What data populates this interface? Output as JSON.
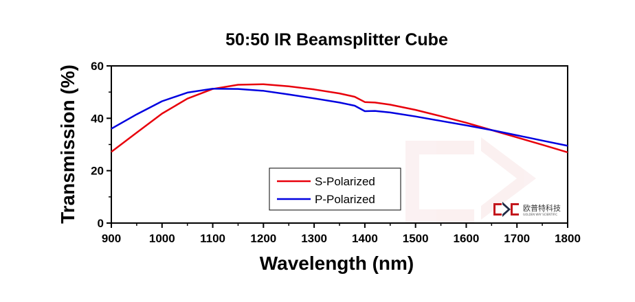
{
  "chart_data": {
    "type": "line",
    "title": "50:50 IR Beamsplitter Cube",
    "xlabel": "Wavelength (nm)",
    "ylabel": "Transmission (%)",
    "xlim": [
      900,
      1800
    ],
    "ylim": [
      0,
      60
    ],
    "xticks": [
      900,
      1000,
      1100,
      1200,
      1300,
      1400,
      1500,
      1600,
      1700,
      1800
    ],
    "yticks": [
      0,
      20,
      40,
      60
    ],
    "grid": false,
    "legend_position": "lower-center",
    "series": [
      {
        "name": "S-Polarized",
        "color": "#e8000b",
        "x": [
          900,
          950,
          1000,
          1050,
          1100,
          1150,
          1200,
          1250,
          1300,
          1350,
          1380,
          1400,
          1420,
          1450,
          1500,
          1550,
          1600,
          1650,
          1700,
          1750,
          1800
        ],
        "y": [
          27.2,
          34.5,
          41.8,
          47.5,
          51.2,
          52.8,
          53.0,
          52.2,
          51.0,
          49.5,
          48.2,
          46.2,
          46.0,
          45.2,
          43.2,
          40.8,
          38.3,
          35.5,
          32.7,
          29.9,
          27.0
        ]
      },
      {
        "name": "P-Polarized",
        "color": "#0000e0",
        "x": [
          900,
          950,
          1000,
          1050,
          1100,
          1150,
          1200,
          1250,
          1300,
          1350,
          1380,
          1400,
          1420,
          1450,
          1500,
          1550,
          1600,
          1650,
          1700,
          1750,
          1800
        ],
        "y": [
          36.0,
          41.5,
          46.5,
          49.8,
          51.3,
          51.2,
          50.5,
          49.1,
          47.6,
          46.0,
          44.8,
          42.7,
          42.8,
          42.2,
          40.7,
          39.0,
          37.3,
          35.5,
          33.5,
          31.5,
          29.5
        ]
      }
    ]
  },
  "logo": {
    "cn": "欧普特科技",
    "en": "GOLDEN WAY SCIENTIFIC",
    "colors": [
      "#c3161c",
      "#1f2a44"
    ]
  }
}
